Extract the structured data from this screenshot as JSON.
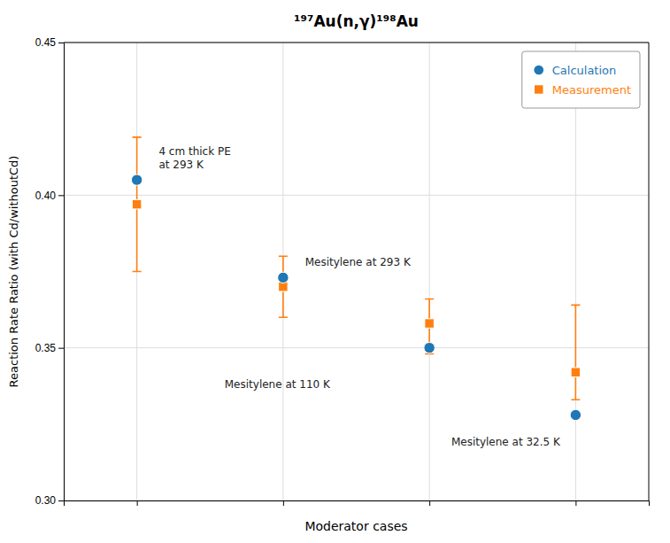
{
  "chart_data": {
    "type": "scatter",
    "title": "¹⁹⁷Au(n,γ)¹⁹⁸Au",
    "xlabel": "Moderator cases",
    "ylabel": "Reaction Rate Ratio (with Cd/withoutCd)",
    "xlim": [
      0.5,
      4.5
    ],
    "xticks": [
      1,
      2,
      3,
      4
    ],
    "ylim": [
      0.3,
      0.45
    ],
    "yticks": [
      {
        "value": 0.3,
        "label": "0.30"
      },
      0.35,
      {
        "value": 0.4,
        "label": "0.40"
      },
      {
        "value": 0.45,
        "label": "0.45"
      }
    ],
    "tick_labels": "y",
    "grid": true,
    "legend": "upper right",
    "series": [
      {
        "name": "Calculation",
        "marker": "circle",
        "x": [
          1,
          2,
          3,
          4
        ],
        "values": [
          0.405,
          0.373,
          0.35,
          0.328
        ]
      },
      {
        "name": "Measurement",
        "marker": "square",
        "x": [
          1,
          2,
          3,
          4
        ],
        "values": [
          0.397,
          0.37,
          0.358,
          0.342
        ],
        "error_lo": [
          0.022,
          0.01,
          0.01,
          0.009
        ],
        "error_hi": [
          0.022,
          0.01,
          0.008,
          0.022
        ]
      }
    ],
    "annotations": [
      {
        "text": "4 cm thick PE\nat 293 K",
        "x": 1.15,
        "y": 0.412
      },
      {
        "text": "Mesitylene at 293 K",
        "x": 2.15,
        "y": 0.378
      },
      {
        "text": "Mesitylene at 110 K",
        "x": 1.6,
        "y": 0.338
      },
      {
        "text": "Mesitylene at 32.5 K",
        "x": 3.15,
        "y": 0.319
      }
    ]
  }
}
